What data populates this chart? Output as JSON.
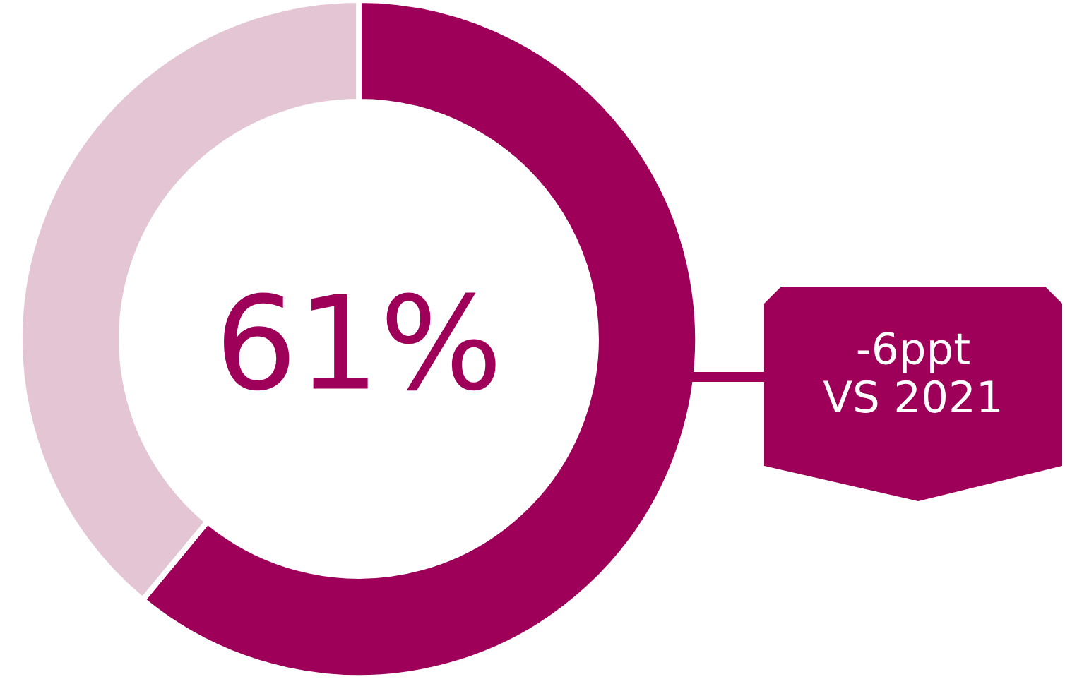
{
  "chart_data": {
    "type": "donut",
    "categories": [
      null,
      null
    ],
    "values": [
      61,
      39
    ],
    "colors": [
      "#9e0059",
      "#e4c5d3"
    ],
    "value_labels": [
      "61%",
      null
    ],
    "annotations": [
      "-6ppt\nVS 2021"
    ]
  }
}
